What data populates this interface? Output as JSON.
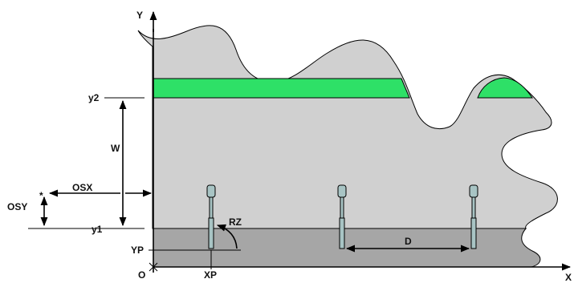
{
  "colors": {
    "region_light": "#d0d0d0",
    "region_dark": "#a6a6a6",
    "band": "#2ee067",
    "stroke": "#000000",
    "sensor": "#a8c4c4"
  },
  "labels": {
    "y_axis": "Y",
    "x_axis": "X",
    "origin": "O",
    "y2": "y2",
    "y1": "y1",
    "w": "W",
    "osx": "OSX",
    "osy": "OSY",
    "star": "*",
    "rz": "RZ",
    "d": "D",
    "yp": "YP",
    "xp": "XP"
  },
  "elements": {
    "sensors": [
      {
        "name": "sensor-1"
      },
      {
        "name": "sensor-2"
      },
      {
        "name": "sensor-3"
      }
    ]
  }
}
